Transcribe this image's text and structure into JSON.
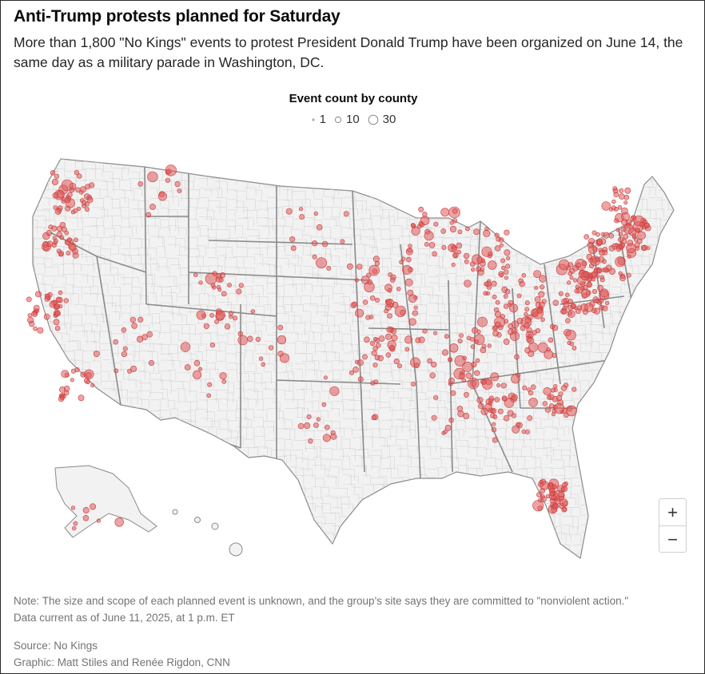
{
  "header": {
    "title": "Anti-Trump protests planned for Saturday",
    "subtitle": "More than 1,800 \"No Kings\" events to protest President Donald Trump have been organized on June 14, the same day as a military parade in Washington, DC."
  },
  "legend": {
    "title": "Event count by county",
    "items": [
      {
        "label": "1",
        "count": 1
      },
      {
        "label": "10",
        "count": 10
      },
      {
        "label": "30",
        "count": 30
      }
    ]
  },
  "map": {
    "region": "United States (counties)",
    "colors": {
      "dot_fill": "#e05a5a",
      "dot_stroke": "#c93a3a",
      "land": "#f2f2f2",
      "county_border": "#d0d0d0",
      "state_border": "#8a8a8a"
    },
    "zoom_in_label": "+",
    "zoom_out_label": "−"
  },
  "footer": {
    "note": "Note: The size and scope of each planned event is unknown, and the group's site says they are committed to \"nonviolent action.\"",
    "data_current": "Data current as of June 11, 2025, at 1 p.m. ET",
    "source": "Source: No Kings",
    "graphic": "Graphic: Matt Stiles and Renée Rigdon, CNN"
  }
}
